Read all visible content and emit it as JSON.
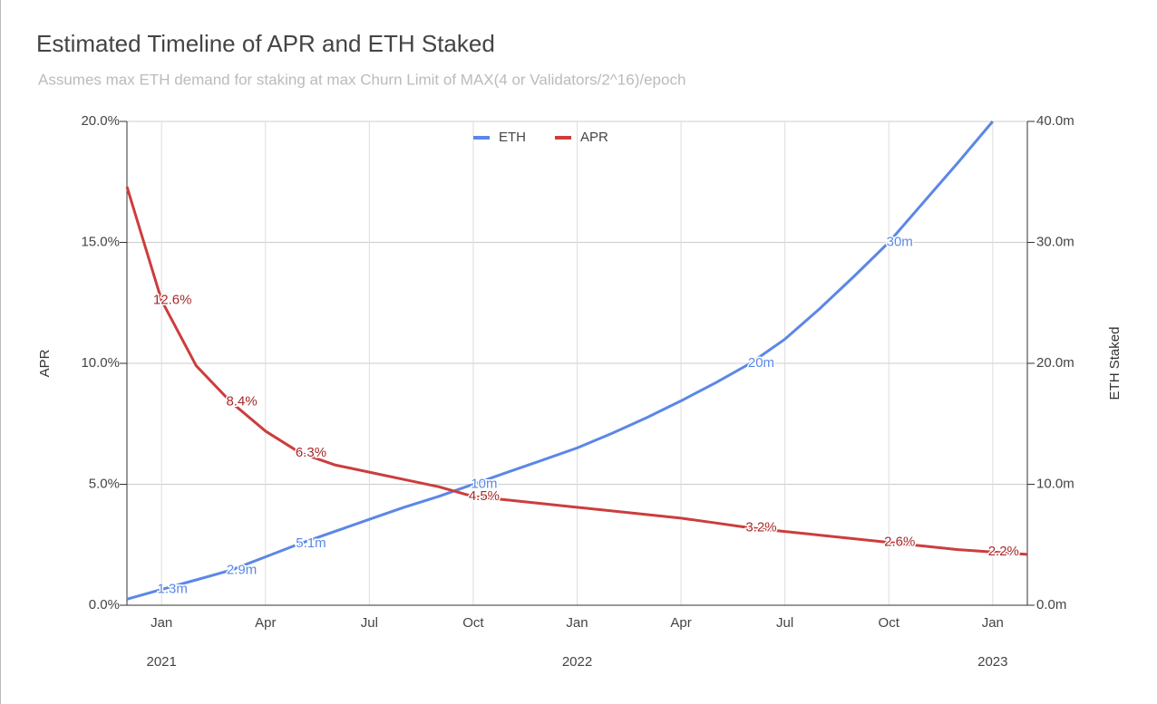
{
  "chart_data": {
    "type": "line",
    "title": "Estimated Timeline of APR and ETH Staked",
    "subtitle": "Assumes max ETH demand for staking at max Churn Limit of MAX(4 or Validators/2^16)/epoch",
    "ylabel": "APR",
    "y2label": "ETH Staked",
    "x": [
      "2020-12",
      "2021-01",
      "2021-02",
      "2021-03",
      "2021-04",
      "2021-05",
      "2021-06",
      "2021-07",
      "2021-08",
      "2021-09",
      "2021-10",
      "2021-11",
      "2021-12",
      "2022-01",
      "2022-02",
      "2022-03",
      "2022-04",
      "2022-05",
      "2022-06",
      "2022-07",
      "2022-08",
      "2022-09",
      "2022-10",
      "2022-11",
      "2022-12",
      "2023-01",
      "2023-02"
    ],
    "xlim": [
      "2020-12",
      "2023-02"
    ],
    "xticks": [
      {
        "value": "2021-01",
        "label": "Jan"
      },
      {
        "value": "2021-04",
        "label": "Apr"
      },
      {
        "value": "2021-07",
        "label": "Jul"
      },
      {
        "value": "2021-10",
        "label": "Oct"
      },
      {
        "value": "2022-01",
        "label": "Jan"
      },
      {
        "value": "2022-04",
        "label": "Apr"
      },
      {
        "value": "2022-07",
        "label": "Jul"
      },
      {
        "value": "2022-10",
        "label": "Oct"
      },
      {
        "value": "2023-01",
        "label": "Jan"
      }
    ],
    "xyears": [
      {
        "value": "2021-01",
        "label": "2021"
      },
      {
        "value": "2022-01",
        "label": "2022"
      },
      {
        "value": "2023-01",
        "label": "2023"
      }
    ],
    "ylim": [
      0,
      20
    ],
    "yticks": [
      {
        "value": 0,
        "label": "0.0%"
      },
      {
        "value": 5,
        "label": "5.0%"
      },
      {
        "value": 10,
        "label": "10.0%"
      },
      {
        "value": 15,
        "label": "15.0%"
      },
      {
        "value": 20,
        "label": "20.0%"
      }
    ],
    "y2lim": [
      0,
      40
    ],
    "y2ticks": [
      {
        "value": 0,
        "label": "0.0m"
      },
      {
        "value": 10,
        "label": "10.0m"
      },
      {
        "value": 20,
        "label": "20.0m"
      },
      {
        "value": 30,
        "label": "30.0m"
      },
      {
        "value": 40,
        "label": "40.0m"
      }
    ],
    "grid": true,
    "legend": "top",
    "series": [
      {
        "name": "ETH",
        "color": "#5b87e6",
        "axis": "y2",
        "values": [
          0.5,
          1.3,
          2.1,
          2.9,
          4.0,
          5.1,
          6.1,
          7.1,
          8.1,
          9.0,
          10,
          11.0,
          12.0,
          13.0,
          14.2,
          15.5,
          16.9,
          18.4,
          20,
          22.0,
          24.5,
          27.2,
          30,
          33.3,
          36.6,
          40.0,
          null
        ],
        "value_labels": [
          null,
          "1.3m",
          null,
          "2.9m",
          null,
          "5.1m",
          null,
          null,
          null,
          null,
          "10m",
          null,
          null,
          null,
          null,
          null,
          null,
          null,
          "20m",
          null,
          null,
          null,
          "30m",
          null,
          null,
          null,
          null
        ]
      },
      {
        "name": "APR",
        "color": "#cc3d3d",
        "values": [
          17.3,
          12.6,
          9.9,
          8.4,
          7.2,
          6.3,
          5.8,
          5.5,
          5.2,
          4.9,
          4.5,
          4.35,
          4.2,
          4.05,
          3.9,
          3.75,
          3.6,
          3.4,
          3.2,
          3.05,
          2.9,
          2.75,
          2.6,
          2.45,
          2.3,
          2.2,
          2.1
        ],
        "value_labels": [
          null,
          "12.6%",
          null,
          "8.4%",
          null,
          "6.3%",
          null,
          null,
          null,
          null,
          "4.5%",
          null,
          null,
          null,
          null,
          null,
          null,
          null,
          "3.2%",
          null,
          null,
          null,
          "2.6%",
          null,
          null,
          "2.2%",
          null
        ]
      }
    ]
  }
}
